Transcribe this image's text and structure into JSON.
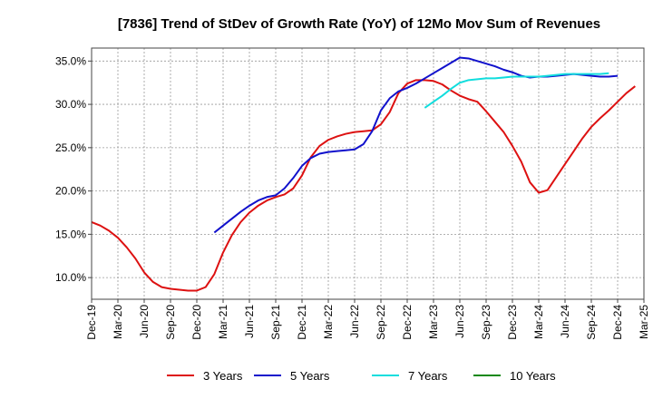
{
  "chart_data": {
    "type": "line",
    "title": "[7836]  Trend of StDev of Growth Rate (YoY) of 12Mo Mov Sum of Revenues",
    "xlabel": "",
    "ylabel": "",
    "ylim": [
      7.5,
      36.5
    ],
    "y_ticks": [
      10,
      15,
      20,
      25,
      30,
      35
    ],
    "y_tick_labels": [
      "10.0%",
      "15.0%",
      "20.0%",
      "25.0%",
      "30.0%",
      "35.0%"
    ],
    "x_tick_labels": [
      "Dec-19",
      "Mar-20",
      "Jun-20",
      "Sep-20",
      "Dec-20",
      "Mar-21",
      "Jun-21",
      "Sep-21",
      "Dec-21",
      "Mar-22",
      "Jun-22",
      "Sep-22",
      "Dec-22",
      "Mar-23",
      "Jun-23",
      "Sep-23",
      "Dec-23",
      "Mar-24",
      "Jun-24",
      "Sep-24",
      "Dec-24",
      "Mar-25"
    ],
    "grid": true,
    "legend_position": "bottom",
    "series": [
      {
        "name": "3 Years",
        "color": "#dd1111",
        "start_index": 0,
        "values": [
          16.4,
          16.0,
          15.4,
          14.6,
          13.5,
          12.2,
          10.6,
          9.5,
          8.9,
          8.7,
          8.6,
          8.5,
          8.5,
          8.9,
          10.4,
          12.9,
          14.9,
          16.4,
          17.5,
          18.3,
          18.9,
          19.3,
          19.6,
          20.3,
          21.8,
          23.9,
          25.2,
          25.9,
          26.3,
          26.6,
          26.8,
          26.9,
          27.0,
          27.7,
          29.1,
          31.3,
          32.4,
          32.8,
          32.8,
          32.7,
          32.3,
          31.6,
          31.0,
          30.6,
          30.3,
          29.2,
          28.0,
          26.8,
          25.2,
          23.4,
          21.0,
          19.8,
          20.1,
          21.6,
          23.1,
          24.6,
          26.1,
          27.4,
          28.4,
          29.3,
          30.3,
          31.3,
          32.1
        ]
      },
      {
        "name": "5 Years",
        "color": "#1111cc",
        "start_index": 14,
        "values": [
          15.2,
          16.0,
          16.8,
          17.6,
          18.3,
          18.9,
          19.3,
          19.5,
          20.3,
          21.5,
          22.9,
          23.8,
          24.3,
          24.5,
          24.6,
          24.7,
          24.8,
          25.4,
          26.9,
          29.3,
          30.7,
          31.5,
          31.9,
          32.4,
          33.0,
          33.6,
          34.2,
          34.8,
          35.4,
          35.3,
          35.0,
          34.7,
          34.4,
          34.0,
          33.7,
          33.3,
          33.1,
          33.2,
          33.2,
          33.3,
          33.4,
          33.5,
          33.4,
          33.3,
          33.2,
          33.2,
          33.3
        ]
      },
      {
        "name": "7 Years",
        "color": "#11dddd",
        "start_index": 38,
        "values": [
          29.6,
          30.3,
          31.0,
          31.8,
          32.5,
          32.8,
          32.9,
          33.0,
          33.0,
          33.1,
          33.2,
          33.2,
          33.2,
          33.2,
          33.3,
          33.4,
          33.5,
          33.5,
          33.5,
          33.5,
          33.5,
          33.6
        ]
      },
      {
        "name": "10 Years",
        "color": "#118811",
        "start_index": 0,
        "values": []
      }
    ]
  }
}
